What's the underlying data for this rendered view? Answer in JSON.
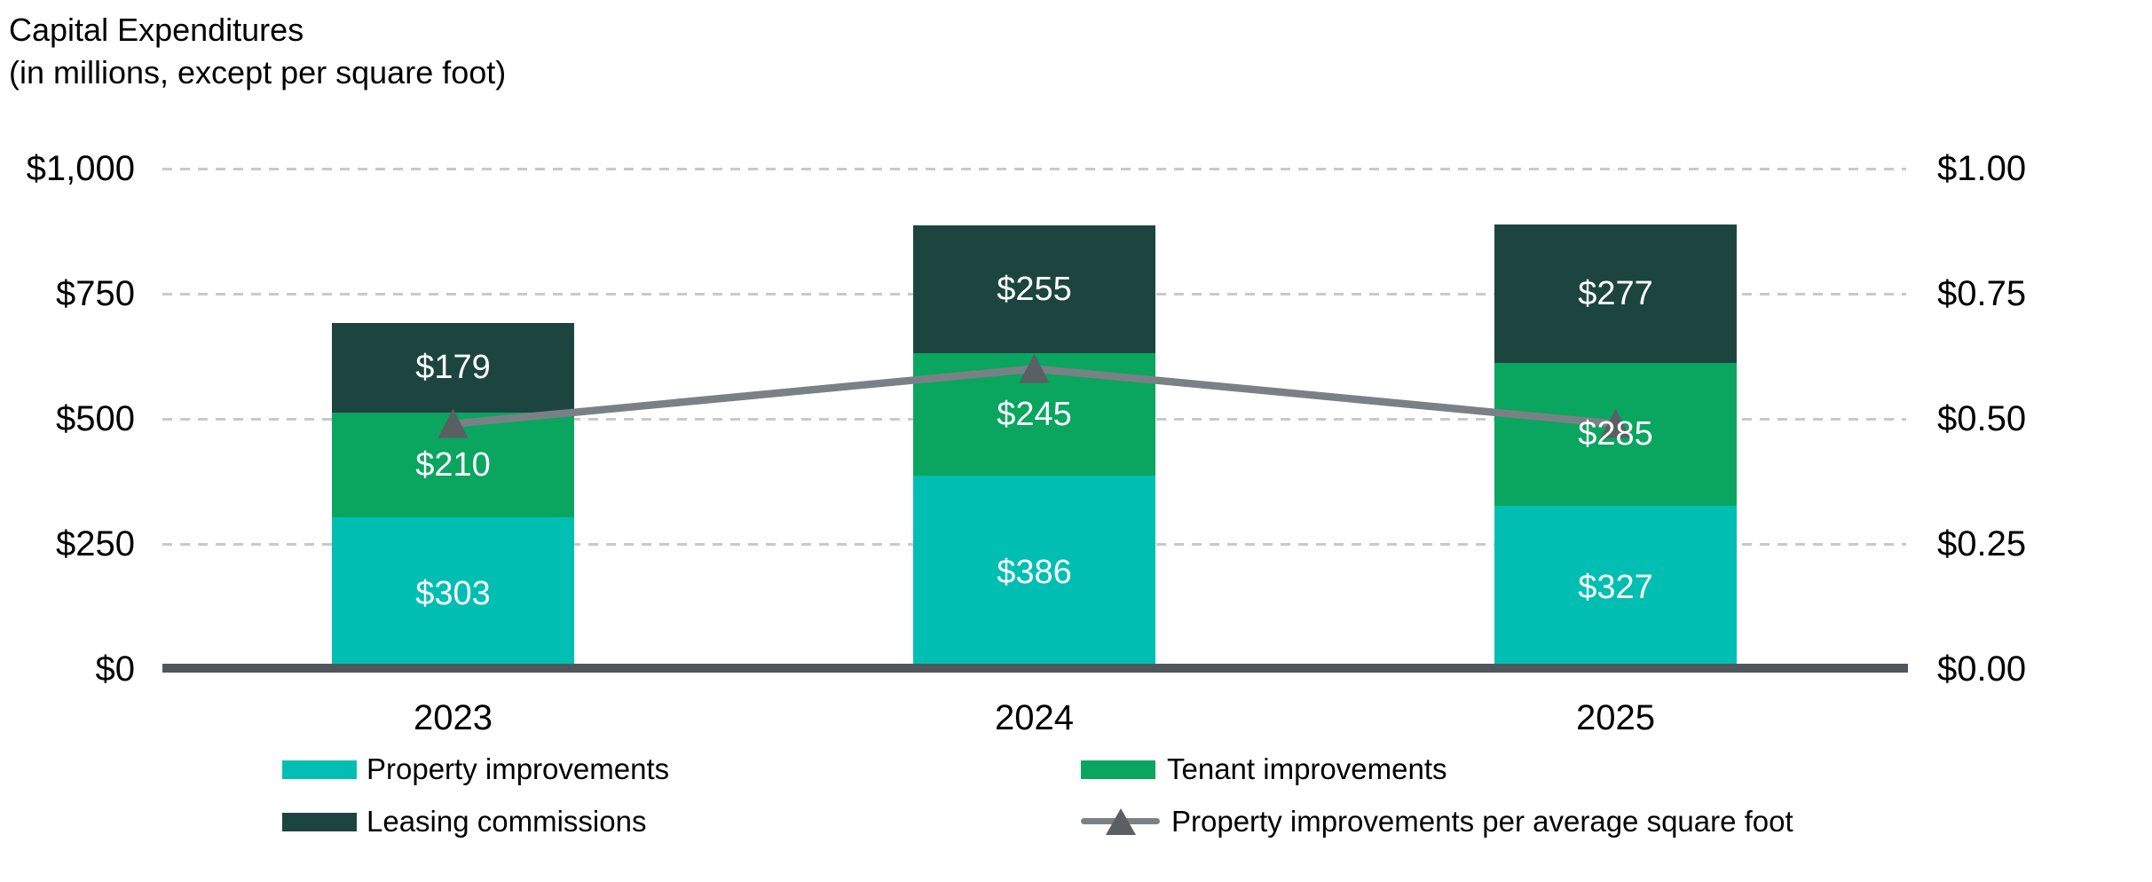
{
  "chart_data": {
    "type": "bar",
    "subtype": "stacked-bars-with-line-overlay",
    "title": "Capital Expenditures",
    "subtitle": "(in millions, except per square foot)",
    "categories": [
      "2023",
      "2024",
      "2025"
    ],
    "stacked": true,
    "bar_series": [
      {
        "name": "Property improvements",
        "color": "#00BFB2",
        "values": [
          303,
          386,
          327
        ],
        "labels": [
          "$303",
          "$386",
          "$327"
        ]
      },
      {
        "name": "Tenant improvements",
        "color": "#0AA55F",
        "values": [
          210,
          245,
          285
        ],
        "labels": [
          "$210",
          "$245",
          "$285"
        ]
      },
      {
        "name": "Leasing commissions",
        "color": "#1D453F",
        "values": [
          179,
          255,
          277
        ],
        "labels": [
          "$179",
          "$255",
          "$277"
        ]
      }
    ],
    "bar_totals": [
      692,
      886,
      889
    ],
    "line_series": [
      {
        "name": "Property improvements per average square foot",
        "color": "#7A8186",
        "marker": "triangle-up",
        "marker_color": "#5A5F64",
        "axis": "right",
        "values": [
          0.49,
          0.6,
          0.49
        ]
      }
    ],
    "left_axis": {
      "range": [
        0,
        1000
      ],
      "tick_values": [
        1000,
        750,
        500,
        250,
        0
      ],
      "tick_labels": [
        "$1,000",
        "$750",
        "$500",
        "$250",
        "$0"
      ]
    },
    "right_axis": {
      "range": [
        0,
        1
      ],
      "tick_values": [
        1,
        0.75,
        0.5,
        0.25,
        0
      ],
      "tick_labels": [
        "$1.00",
        "$0.75",
        "$0.50",
        "$0.25",
        "$0.00"
      ]
    },
    "grid": {
      "horizontal": true,
      "style": "dashed",
      "color": "#C7C9CA"
    },
    "baseline_color": "#50565C",
    "value_label_color": "#FFFFFF",
    "legend_position": "bottom"
  },
  "legend": {
    "items": [
      {
        "label": "Property improvements",
        "marker": "square",
        "color": "#00BFB2"
      },
      {
        "label": "Tenant improvements",
        "marker": "square",
        "color": "#0AA55F"
      },
      {
        "label": "Leasing commissions",
        "marker": "square",
        "color": "#1D453F"
      },
      {
        "label": "Property improvements per average square foot",
        "marker": "line-triangle",
        "color": "#7A8186",
        "marker_color": "#5A5F64"
      }
    ]
  }
}
